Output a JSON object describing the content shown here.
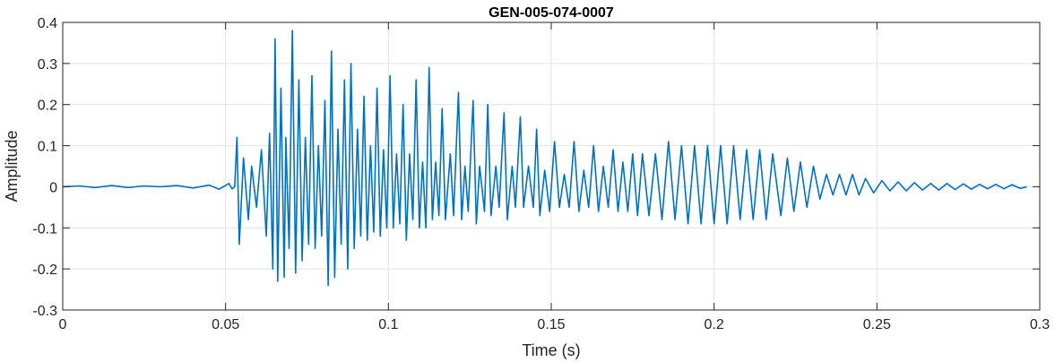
{
  "chart_data": {
    "type": "line",
    "title": "GEN-005-074-0007",
    "xlabel": "Time (s)",
    "ylabel": "Amplitude",
    "xlim": [
      0,
      0.3
    ],
    "ylim": [
      -0.3,
      0.4
    ],
    "x_ticks": [
      0,
      0.05,
      0.1,
      0.15,
      0.2,
      0.25,
      0.3
    ],
    "x_tick_labels": [
      "0",
      "0.05",
      "0.1",
      "0.15",
      "0.2",
      "0.25",
      "0.3"
    ],
    "y_ticks": [
      -0.3,
      -0.2,
      -0.1,
      0,
      0.1,
      0.2,
      0.3,
      0.4
    ],
    "y_tick_labels": [
      "-0.3",
      "-0.2",
      "-0.1",
      "0",
      "0.1",
      "0.2",
      "0.3",
      "0.4"
    ],
    "grid": true,
    "color": "#0072BD",
    "series": [
      {
        "name": "",
        "points": [
          [
            0.0,
            0.0
          ],
          [
            0.005,
            0.002
          ],
          [
            0.01,
            -0.002
          ],
          [
            0.015,
            0.003
          ],
          [
            0.02,
            -0.002
          ],
          [
            0.025,
            0.002
          ],
          [
            0.03,
            0.0
          ],
          [
            0.035,
            0.003
          ],
          [
            0.04,
            -0.003
          ],
          [
            0.045,
            0.004
          ],
          [
            0.048,
            -0.006
          ],
          [
            0.051,
            0.008
          ],
          [
            0.052,
            -0.005
          ],
          [
            0.0528,
            0.0
          ],
          [
            0.0535,
            0.12
          ],
          [
            0.0542,
            -0.14
          ],
          [
            0.0555,
            0.07
          ],
          [
            0.057,
            -0.08
          ],
          [
            0.058,
            0.05
          ],
          [
            0.0595,
            -0.05
          ],
          [
            0.061,
            0.09
          ],
          [
            0.0625,
            -0.12
          ],
          [
            0.0635,
            0.13
          ],
          [
            0.0645,
            -0.2
          ],
          [
            0.0652,
            0.36
          ],
          [
            0.066,
            -0.23
          ],
          [
            0.067,
            0.24
          ],
          [
            0.068,
            -0.22
          ],
          [
            0.0685,
            0.12
          ],
          [
            0.0695,
            -0.15
          ],
          [
            0.0705,
            0.38
          ],
          [
            0.0715,
            -0.21
          ],
          [
            0.0725,
            0.26
          ],
          [
            0.0735,
            -0.18
          ],
          [
            0.0745,
            0.12
          ],
          [
            0.0755,
            -0.14
          ],
          [
            0.0765,
            0.27
          ],
          [
            0.0775,
            -0.15
          ],
          [
            0.0785,
            0.1
          ],
          [
            0.0795,
            -0.12
          ],
          [
            0.0805,
            0.21
          ],
          [
            0.0815,
            -0.24
          ],
          [
            0.0825,
            0.33
          ],
          [
            0.0835,
            -0.22
          ],
          [
            0.0845,
            0.14
          ],
          [
            0.0855,
            -0.14
          ],
          [
            0.0865,
            0.26
          ],
          [
            0.0875,
            -0.2
          ],
          [
            0.0885,
            0.3
          ],
          [
            0.0895,
            -0.15
          ],
          [
            0.0905,
            0.14
          ],
          [
            0.0915,
            -0.12
          ],
          [
            0.0925,
            0.22
          ],
          [
            0.0935,
            -0.13
          ],
          [
            0.0945,
            0.1
          ],
          [
            0.0955,
            -0.11
          ],
          [
            0.0965,
            0.24
          ],
          [
            0.0975,
            -0.12
          ],
          [
            0.0985,
            0.09
          ],
          [
            0.0995,
            -0.1
          ],
          [
            0.1005,
            0.27
          ],
          [
            0.1015,
            -0.1
          ],
          [
            0.1025,
            0.08
          ],
          [
            0.1035,
            -0.09
          ],
          [
            0.1045,
            0.2
          ],
          [
            0.1055,
            -0.13
          ],
          [
            0.1065,
            0.08
          ],
          [
            0.1075,
            -0.08
          ],
          [
            0.1085,
            0.26
          ],
          [
            0.1095,
            -0.1
          ],
          [
            0.1105,
            0.06
          ],
          [
            0.1115,
            -0.1
          ],
          [
            0.1125,
            0.29
          ],
          [
            0.1135,
            -0.08
          ],
          [
            0.1145,
            0.06
          ],
          [
            0.1155,
            -0.07
          ],
          [
            0.1165,
            0.19
          ],
          [
            0.1175,
            -0.08
          ],
          [
            0.119,
            0.08
          ],
          [
            0.12,
            -0.07
          ],
          [
            0.1215,
            0.23
          ],
          [
            0.1225,
            -0.08
          ],
          [
            0.1235,
            0.05
          ],
          [
            0.1245,
            -0.06
          ],
          [
            0.126,
            0.21
          ],
          [
            0.127,
            -0.09
          ],
          [
            0.128,
            0.05
          ],
          [
            0.1295,
            -0.06
          ],
          [
            0.1305,
            0.2
          ],
          [
            0.1315,
            -0.07
          ],
          [
            0.133,
            0.05
          ],
          [
            0.134,
            -0.05
          ],
          [
            0.1355,
            0.18
          ],
          [
            0.1365,
            -0.08
          ],
          [
            0.138,
            0.05
          ],
          [
            0.139,
            -0.05
          ],
          [
            0.1405,
            0.17
          ],
          [
            0.1415,
            -0.05
          ],
          [
            0.143,
            0.05
          ],
          [
            0.1445,
            -0.05
          ],
          [
            0.1455,
            0.14
          ],
          [
            0.1465,
            -0.07
          ],
          [
            0.148,
            0.04
          ],
          [
            0.1495,
            -0.06
          ],
          [
            0.151,
            0.11
          ],
          [
            0.1525,
            -0.05
          ],
          [
            0.154,
            0.03
          ],
          [
            0.1555,
            -0.05
          ],
          [
            0.157,
            0.11
          ],
          [
            0.1585,
            -0.06
          ],
          [
            0.16,
            0.04
          ],
          [
            0.1615,
            -0.05
          ],
          [
            0.163,
            0.1
          ],
          [
            0.1645,
            -0.06
          ],
          [
            0.166,
            0.05
          ],
          [
            0.1675,
            -0.05
          ],
          [
            0.169,
            0.09
          ],
          [
            0.1705,
            -0.06
          ],
          [
            0.172,
            0.06
          ],
          [
            0.1735,
            -0.06
          ],
          [
            0.175,
            0.08
          ],
          [
            0.1765,
            -0.07
          ],
          [
            0.178,
            0.08
          ],
          [
            0.18,
            -0.07
          ],
          [
            0.182,
            0.08
          ],
          [
            0.184,
            -0.08
          ],
          [
            0.186,
            0.11
          ],
          [
            0.188,
            -0.08
          ],
          [
            0.19,
            0.1
          ],
          [
            0.192,
            -0.09
          ],
          [
            0.194,
            0.1
          ],
          [
            0.196,
            -0.09
          ],
          [
            0.198,
            0.1
          ],
          [
            0.2,
            -0.09
          ],
          [
            0.202,
            0.1
          ],
          [
            0.204,
            -0.09
          ],
          [
            0.206,
            0.1
          ],
          [
            0.208,
            -0.08
          ],
          [
            0.21,
            0.09
          ],
          [
            0.212,
            -0.08
          ],
          [
            0.214,
            0.09
          ],
          [
            0.216,
            -0.08
          ],
          [
            0.218,
            0.08
          ],
          [
            0.2205,
            -0.07
          ],
          [
            0.2225,
            0.07
          ],
          [
            0.2245,
            -0.06
          ],
          [
            0.2265,
            0.06
          ],
          [
            0.2285,
            -0.05
          ],
          [
            0.2305,
            0.05
          ],
          [
            0.2325,
            -0.03
          ],
          [
            0.2345,
            0.03
          ],
          [
            0.2365,
            -0.02
          ],
          [
            0.2385,
            0.03
          ],
          [
            0.2405,
            -0.02
          ],
          [
            0.2425,
            0.03
          ],
          [
            0.2445,
            -0.02
          ],
          [
            0.2465,
            0.02
          ],
          [
            0.249,
            -0.015
          ],
          [
            0.2515,
            0.015
          ],
          [
            0.254,
            -0.01
          ],
          [
            0.2565,
            0.012
          ],
          [
            0.259,
            -0.01
          ],
          [
            0.2615,
            0.01
          ],
          [
            0.264,
            -0.008
          ],
          [
            0.2665,
            0.008
          ],
          [
            0.269,
            -0.008
          ],
          [
            0.2715,
            0.008
          ],
          [
            0.274,
            -0.007
          ],
          [
            0.2765,
            0.007
          ],
          [
            0.279,
            -0.006
          ],
          [
            0.2815,
            0.006
          ],
          [
            0.284,
            -0.005
          ],
          [
            0.2865,
            0.006
          ],
          [
            0.289,
            -0.005
          ],
          [
            0.2915,
            0.005
          ],
          [
            0.294,
            -0.004
          ],
          [
            0.296,
            0.0
          ]
        ]
      }
    ]
  }
}
